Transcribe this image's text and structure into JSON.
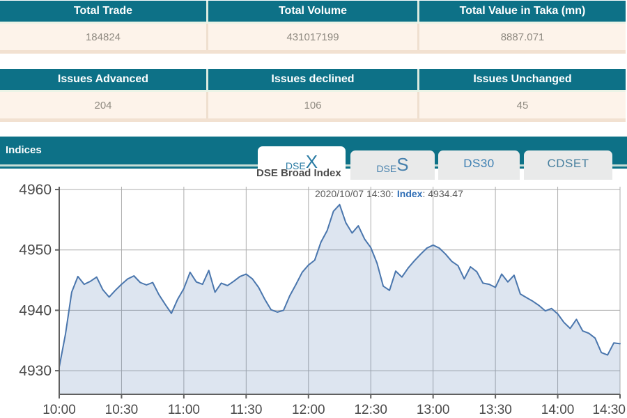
{
  "tables": [
    {
      "headers": [
        "Total Trade",
        "Total Volume",
        "Total Value in Taka (mn)"
      ],
      "values": [
        "184824",
        "431017199",
        "8887.071"
      ]
    },
    {
      "headers": [
        "Issues Advanced",
        "Issues declined",
        "Issues Unchanged"
      ],
      "values": [
        "204",
        "106",
        "45"
      ]
    }
  ],
  "indices": {
    "label": "Indices"
  },
  "tabs": [
    {
      "prefix": "DSE",
      "suffix": "X",
      "active": true
    },
    {
      "prefix": "DSE",
      "suffix": "S",
      "active": false
    },
    {
      "label": "DS30",
      "active": false
    },
    {
      "label": "CDSET",
      "active": false
    }
  ],
  "chart_data": {
    "type": "area",
    "title": "DSE Broad Index",
    "tooltip": {
      "date": "2020/10/07 14:30:",
      "series": "Index",
      "value": ": 4934.47"
    },
    "y_ticks": [
      4930,
      4940,
      4950,
      4960
    ],
    "x_ticks": [
      "10:00",
      "10:30",
      "11:00",
      "11:30",
      "12:00",
      "12:30",
      "13:00",
      "13:30",
      "14:00",
      "14:30"
    ],
    "ylim": [
      4926,
      4960.5
    ],
    "xlabel": "",
    "ylabel": "",
    "grid": true,
    "legend": false,
    "colors": {
      "line": "#4a76ad",
      "fill": "rgba(74,118,173,0.19)",
      "grid": "#adadad",
      "axis": "#606060",
      "tick_label": "#4a4a4a"
    },
    "series": [
      {
        "name": "Index",
        "times": [
          "10:00",
          "10:03",
          "10:06",
          "10:09",
          "10:12",
          "10:15",
          "10:18",
          "10:21",
          "10:24",
          "10:27",
          "10:30",
          "10:33",
          "10:36",
          "10:39",
          "10:42",
          "10:45",
          "10:48",
          "10:51",
          "10:54",
          "10:57",
          "11:00",
          "11:03",
          "11:06",
          "11:09",
          "11:12",
          "11:15",
          "11:18",
          "11:21",
          "11:24",
          "11:27",
          "11:30",
          "11:33",
          "11:36",
          "11:39",
          "11:42",
          "11:45",
          "11:48",
          "11:51",
          "11:54",
          "11:57",
          "12:00",
          "12:03",
          "12:06",
          "12:09",
          "12:12",
          "12:15",
          "12:18",
          "12:21",
          "12:24",
          "12:27",
          "12:30",
          "12:33",
          "12:36",
          "12:39",
          "12:42",
          "12:45",
          "12:48",
          "12:51",
          "12:54",
          "12:57",
          "13:00",
          "13:03",
          "13:06",
          "13:09",
          "13:12",
          "13:15",
          "13:18",
          "13:21",
          "13:24",
          "13:27",
          "13:30",
          "13:33",
          "13:36",
          "13:39",
          "13:42",
          "13:45",
          "13:48",
          "13:51",
          "13:54",
          "13:57",
          "14:00",
          "14:03",
          "14:06",
          "14:09",
          "14:12",
          "14:15",
          "14:18",
          "14:21",
          "14:24",
          "14:27",
          "14:30"
        ],
        "values": [
          4930.6,
          4936.0,
          4943.0,
          4945.6,
          4944.3,
          4944.8,
          4945.5,
          4943.4,
          4942.2,
          4943.3,
          4944.3,
          4945.2,
          4945.7,
          4944.6,
          4944.2,
          4944.6,
          4942.6,
          4941.0,
          4939.5,
          4941.8,
          4943.6,
          4946.3,
          4944.7,
          4944.3,
          4946.6,
          4943.0,
          4944.5,
          4944.1,
          4944.8,
          4945.6,
          4946.0,
          4945.2,
          4943.8,
          4941.8,
          4940.1,
          4939.7,
          4940.0,
          4942.4,
          4944.3,
          4946.3,
          4947.5,
          4948.3,
          4951.3,
          4953.2,
          4956.4,
          4957.5,
          4954.5,
          4952.8,
          4954.0,
          4951.8,
          4950.4,
          4947.8,
          4944.0,
          4943.3,
          4946.5,
          4945.5,
          4947.0,
          4948.2,
          4949.3,
          4950.3,
          4950.8,
          4950.3,
          4949.3,
          4948.1,
          4947.4,
          4945.2,
          4947.2,
          4946.4,
          4944.5,
          4944.3,
          4943.8,
          4946.0,
          4944.7,
          4945.8,
          4942.7,
          4942.1,
          4941.5,
          4940.8,
          4939.9,
          4940.3,
          4939.4,
          4938.0,
          4937.0,
          4938.5,
          4936.6,
          4936.2,
          4935.4,
          4933.0,
          4932.6,
          4934.6,
          4934.47
        ]
      }
    ]
  },
  "theme": {
    "teal": "#0d7187",
    "row_bg": "#fdf3ea",
    "row_text": "#8f8a81"
  }
}
